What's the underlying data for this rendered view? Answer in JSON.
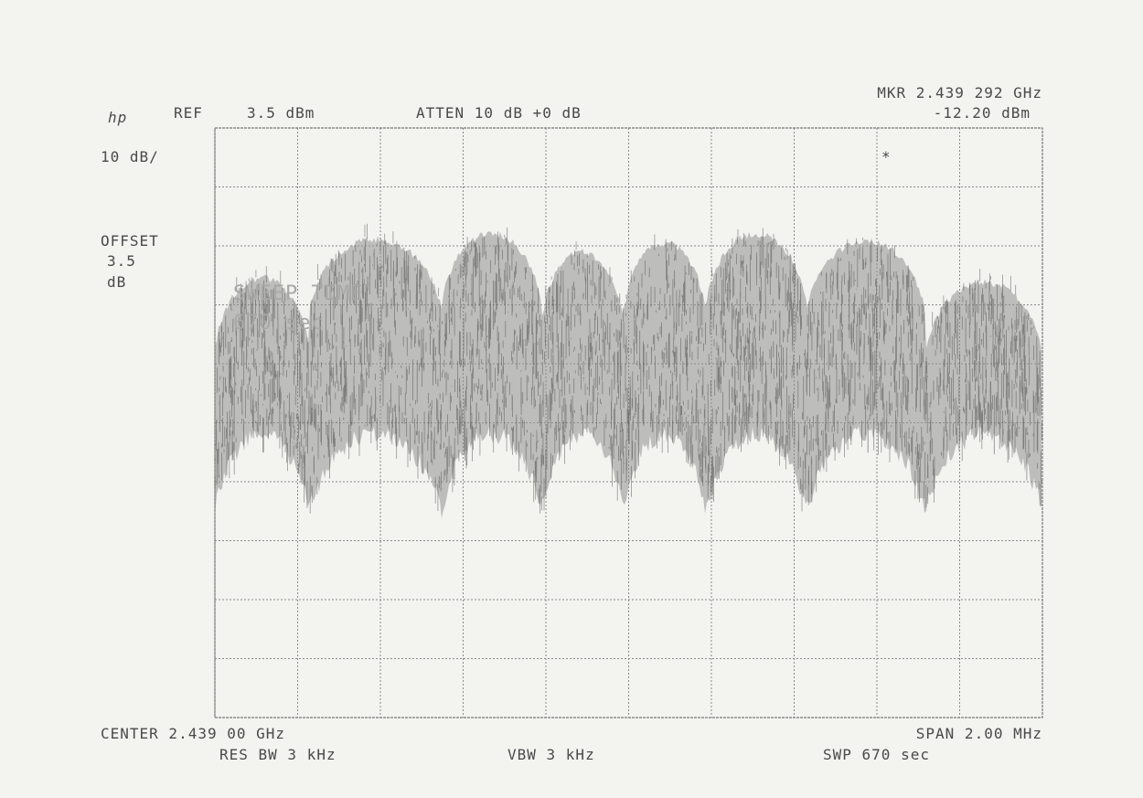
{
  "header": {
    "logo": "hp",
    "ref_label": "REF",
    "ref_value": "3.5 dBm",
    "atten": "ATTEN 10 dB +0 dB",
    "marker_freq": "MKR 2.439 292 GHz",
    "marker_level": "-12.20 dBm",
    "scale": "10 dB/",
    "offset_label": "OFFSET",
    "offset_value": "3.5",
    "offset_unit": "dB",
    "ghost_line1": "SWEEP TIME",
    "ghost_line2": "670 sec",
    "marker_symbol": "*"
  },
  "footer": {
    "center": "CENTER 2.439 00 GHz",
    "span": "SPAN 2.00 MHz",
    "res_bw": "RES BW 3 kHz",
    "vbw": "VBW 3 kHz",
    "sweep": "SWP 670 sec"
  }
}
